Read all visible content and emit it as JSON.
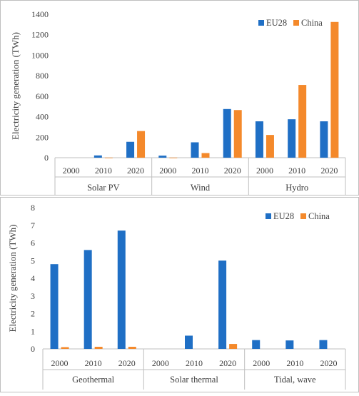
{
  "colors": {
    "eu28": "#1F6FC5",
    "china": "#F4892B",
    "axis": "#BFBFBF",
    "text": "#404040"
  },
  "chart_data": [
    {
      "type": "bar",
      "title": "",
      "ylabel": "Electricity generation (TWh)",
      "ylim": [
        0,
        1400
      ],
      "yticks": [
        "0",
        "200",
        "400",
        "600",
        "800",
        "1000",
        "1200",
        "1400"
      ],
      "grid": false,
      "legend": "top-right",
      "groups": [
        "Solar PV",
        "Wind",
        "Hydro"
      ],
      "categories": [
        "2000",
        "2010",
        "2020",
        "2000",
        "2010",
        "2020",
        "2000",
        "2010",
        "2020"
      ],
      "series": [
        {
          "name": "EU28",
          "values": [
            0,
            22,
            155,
            20,
            150,
            475,
            355,
            375,
            355
          ]
        },
        {
          "name": "China",
          "values": [
            0,
            1,
            260,
            1,
            45,
            465,
            222,
            710,
            1325
          ]
        }
      ]
    },
    {
      "type": "bar",
      "title": "",
      "ylabel": "Electricity generation (TWh)",
      "ylim": [
        0,
        8
      ],
      "yticks": [
        "0",
        "1",
        "2",
        "3",
        "4",
        "5",
        "6",
        "7",
        "8"
      ],
      "grid": false,
      "legend": "top-right",
      "groups": [
        "Geothermal",
        "Solar thermal",
        "Tidal, wave"
      ],
      "categories": [
        "2000",
        "2010",
        "2020",
        "2000",
        "2010",
        "2020",
        "2000",
        "2010",
        "2020"
      ],
      "series": [
        {
          "name": "EU28",
          "values": [
            4.8,
            5.6,
            6.7,
            0,
            0.75,
            5.0,
            0.5,
            0.48,
            0.5
          ]
        },
        {
          "name": "China",
          "values": [
            0.1,
            0.12,
            0.12,
            0,
            0,
            0.28,
            0,
            0,
            0
          ]
        }
      ]
    }
  ]
}
